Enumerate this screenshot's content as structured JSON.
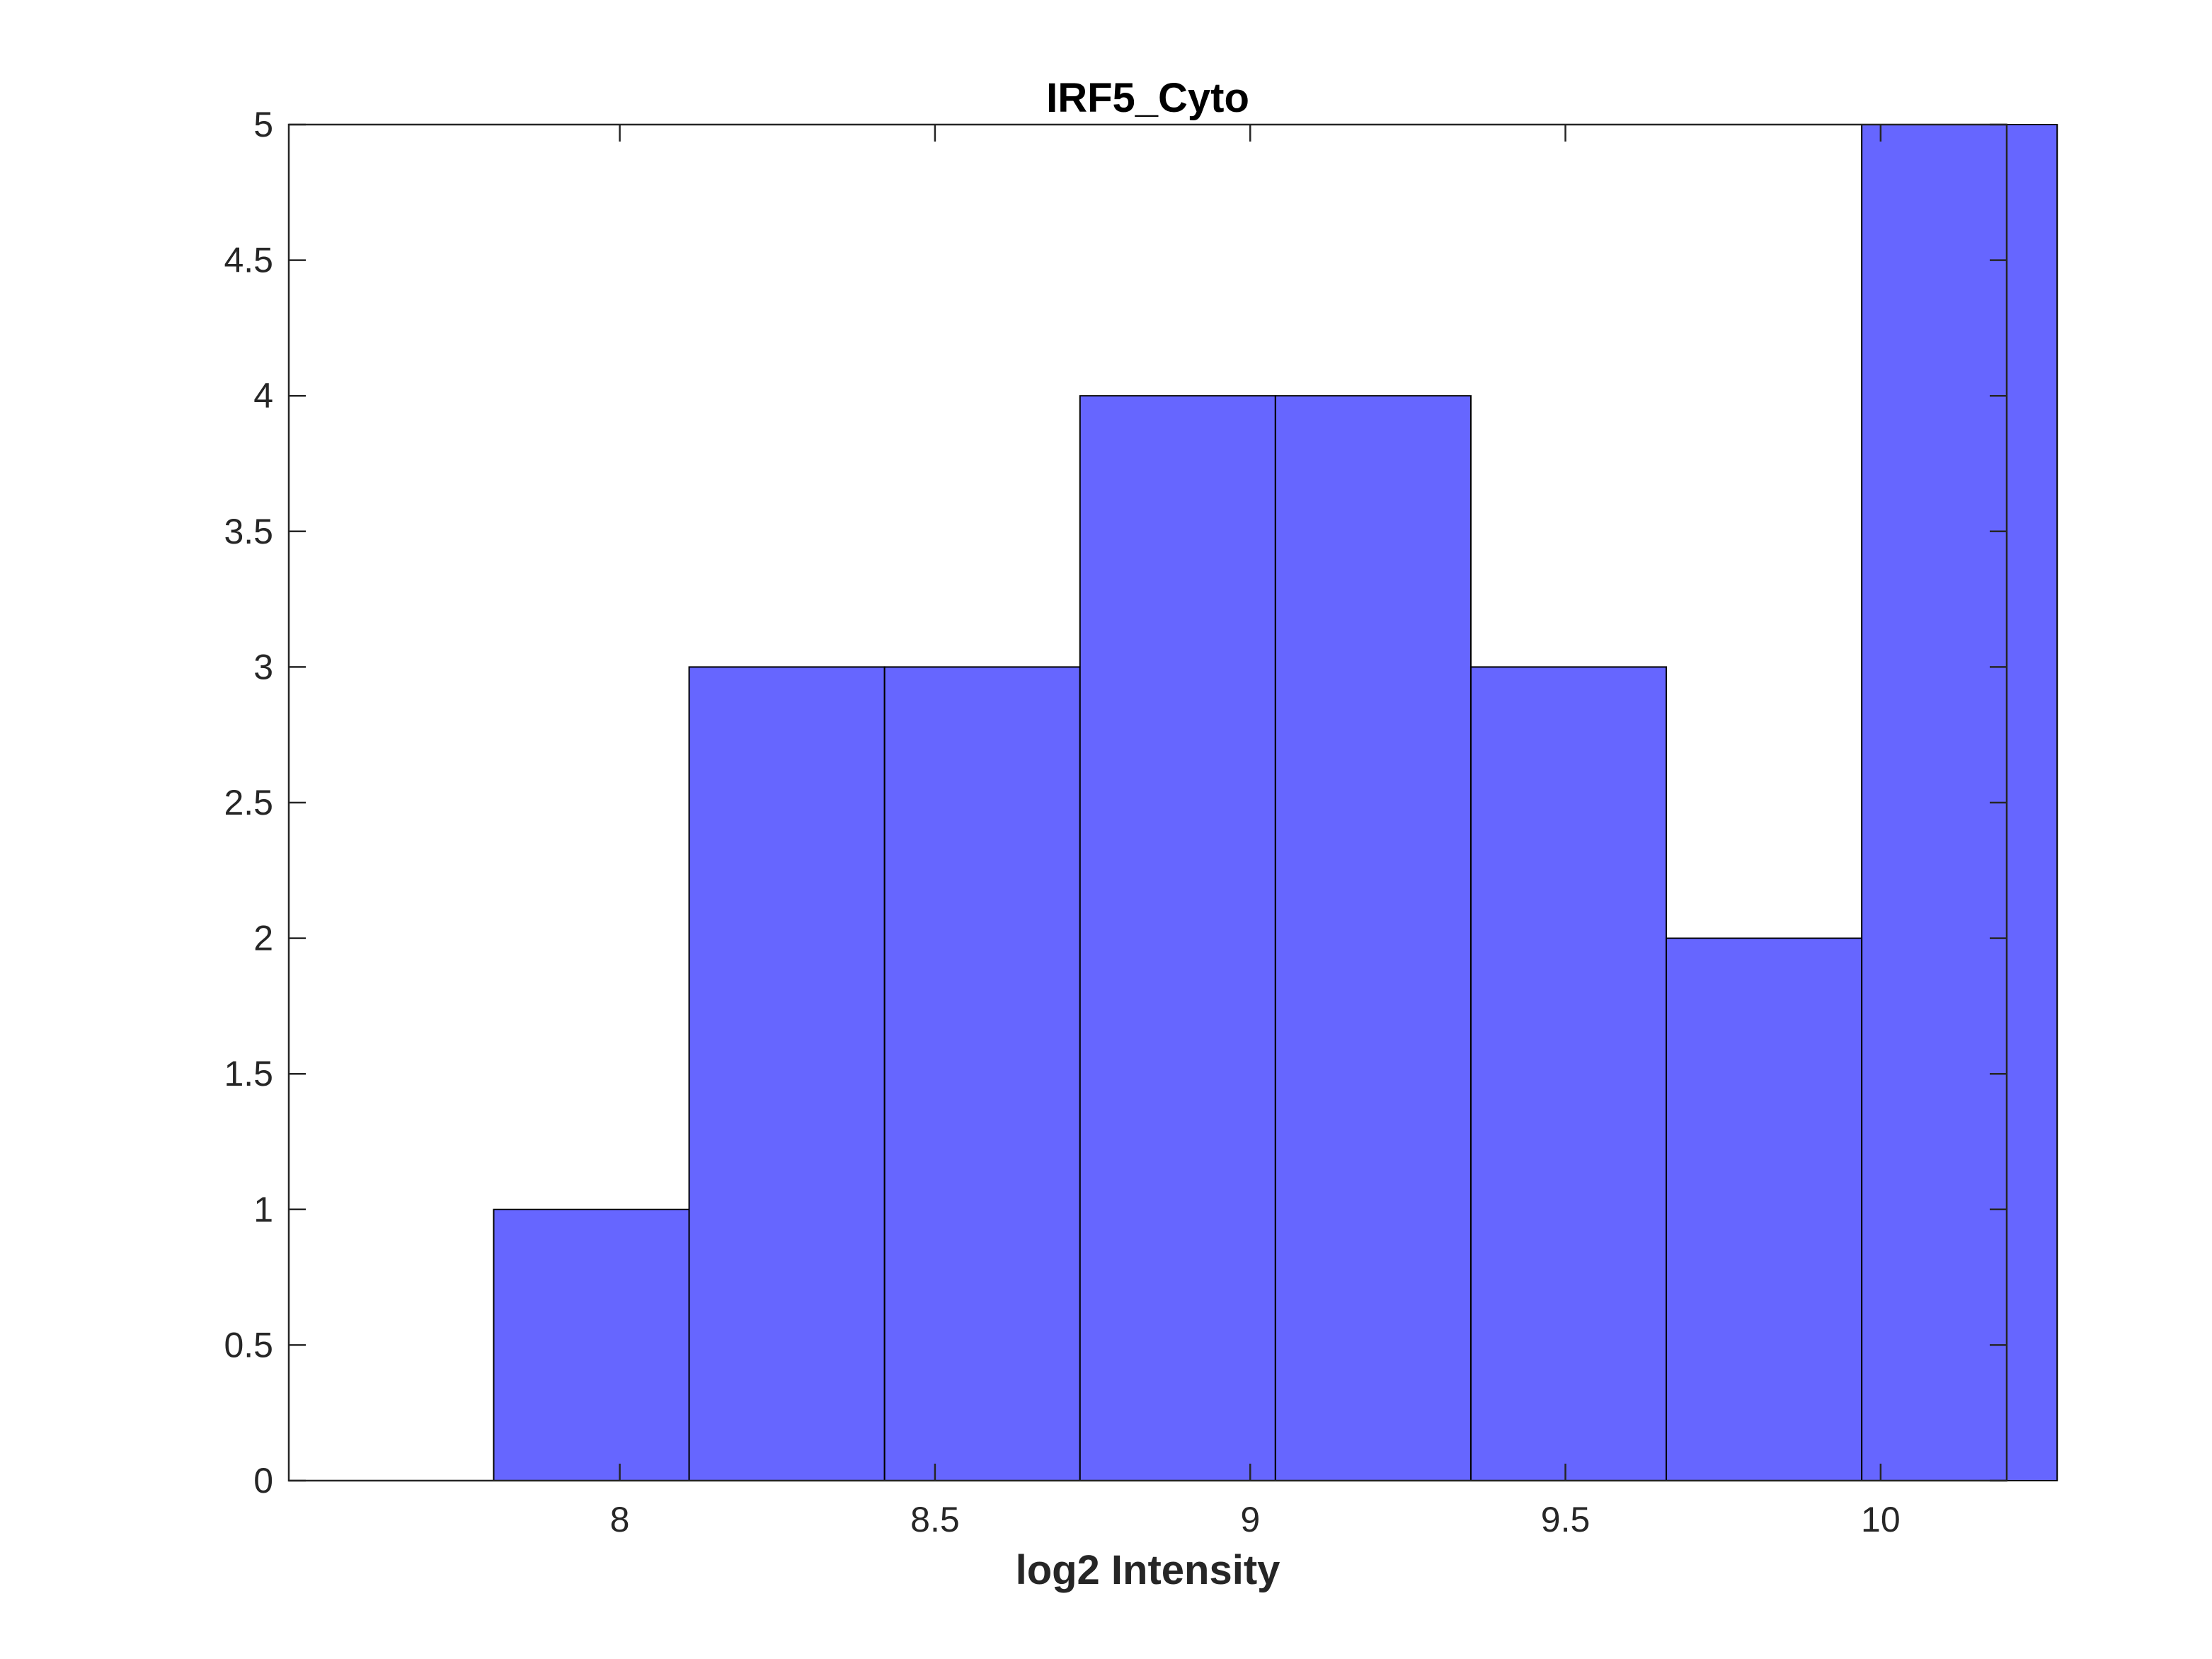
{
  "chart_data": {
    "type": "bar",
    "title": "IRF5_Cyto",
    "xlabel": "log2 Intensity",
    "ylabel": "",
    "bin_edges": [
      7.8,
      8.11,
      8.42,
      8.73,
      9.04,
      9.35,
      9.66,
      9.97,
      10.28
    ],
    "values": [
      1,
      3,
      3,
      4,
      4,
      3,
      2,
      5
    ],
    "xlim": [
      7.475,
      10.2
    ],
    "ylim": [
      0,
      5
    ],
    "xticks": [
      8,
      8.5,
      9,
      9.5,
      10
    ],
    "xtick_labels": [
      "8",
      "8.5",
      "9",
      "9.5",
      "10"
    ],
    "yticks": [
      0,
      0.5,
      1,
      1.5,
      2,
      2.5,
      3,
      3.5,
      4,
      4.5,
      5
    ],
    "ytick_labels": [
      "0",
      "0.5",
      "1",
      "1.5",
      "2",
      "2.5",
      "3",
      "3.5",
      "4",
      "4.5",
      "5"
    ],
    "grid": false,
    "bar_color": "#6666ff",
    "edge_color": "#000000"
  }
}
